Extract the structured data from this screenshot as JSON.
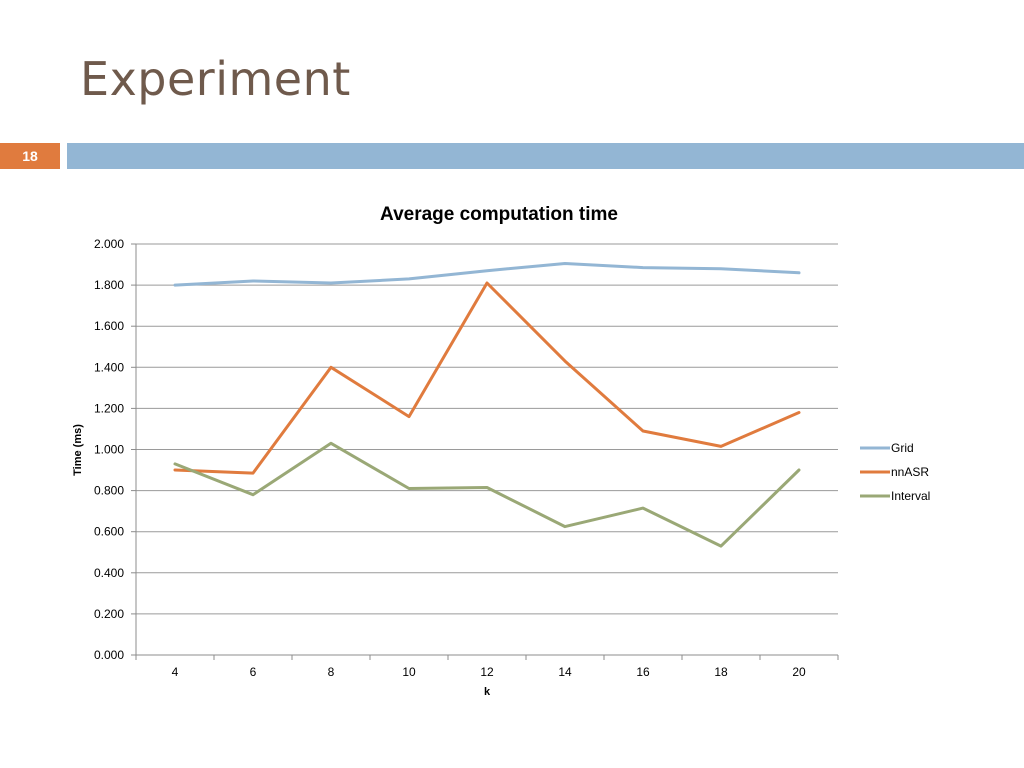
{
  "slide": {
    "title": "Experiment",
    "page_number": "18",
    "accent_color": "#e07b3e",
    "bar_color": "#93b6d4"
  },
  "chart_data": {
    "type": "line",
    "title": "Average computation time",
    "xlabel": "k",
    "ylabel": "Time (ms)",
    "categories": [
      "4",
      "6",
      "8",
      "10",
      "12",
      "14",
      "16",
      "18",
      "20"
    ],
    "ylim": [
      0,
      2.0
    ],
    "yticks": [
      "0.000",
      "0.200",
      "0.400",
      "0.600",
      "0.800",
      "1.000",
      "1.200",
      "1.400",
      "1.600",
      "1.800",
      "2.000"
    ],
    "grid": true,
    "legend_position": "right",
    "series": [
      {
        "name": "Grid",
        "color": "#93b6d4",
        "values": [
          1.8,
          1.82,
          1.81,
          1.83,
          1.87,
          1.905,
          1.885,
          1.88,
          1.86
        ]
      },
      {
        "name": "nnASR",
        "color": "#e07b3e",
        "values": [
          0.9,
          0.885,
          1.4,
          1.16,
          1.81,
          1.43,
          1.09,
          1.015,
          1.18
        ]
      },
      {
        "name": "Interval",
        "color": "#9aa876",
        "values": [
          0.93,
          0.78,
          1.03,
          0.81,
          0.815,
          0.625,
          0.715,
          0.53,
          0.9
        ]
      }
    ]
  }
}
